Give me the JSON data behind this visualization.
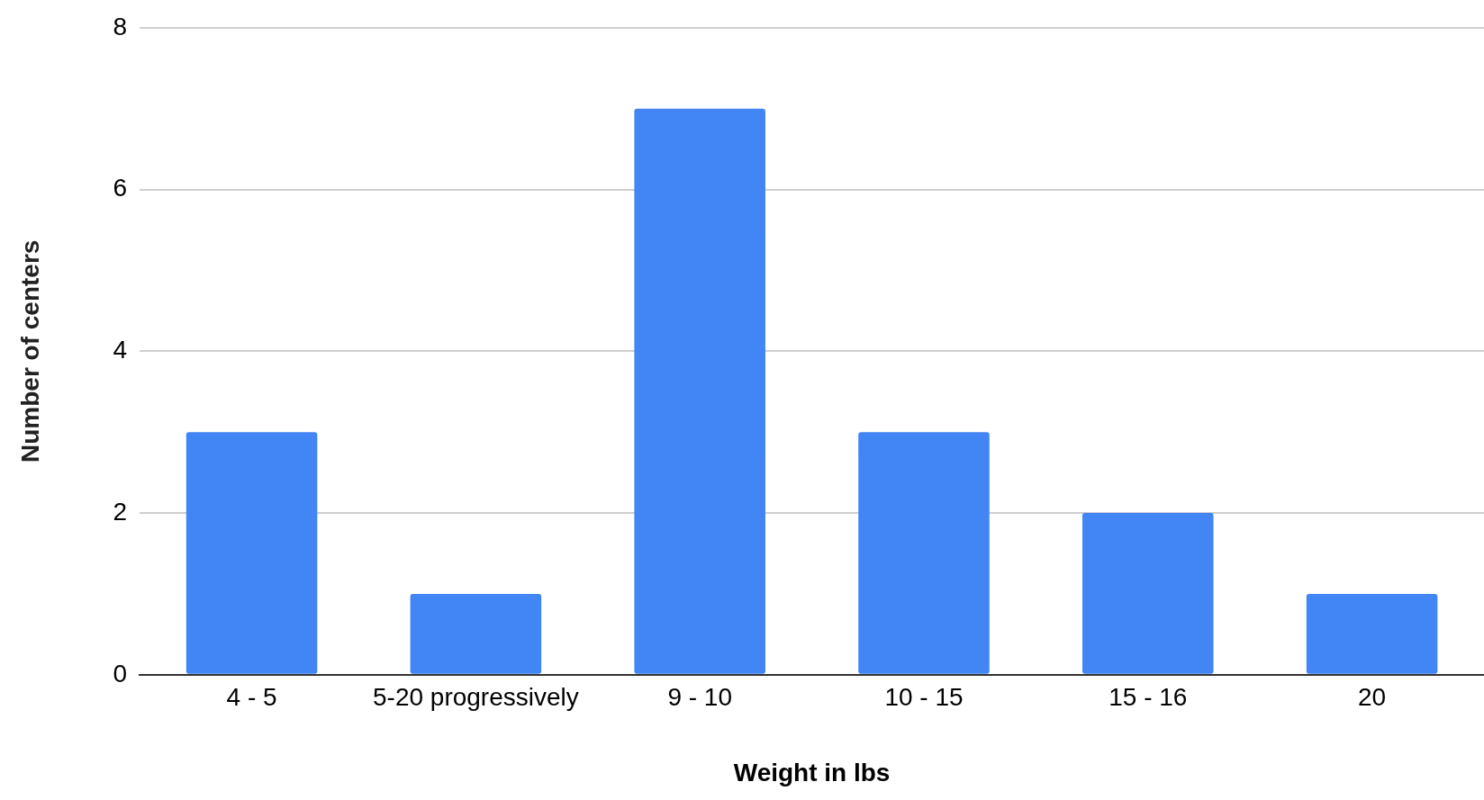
{
  "chart_data": {
    "type": "bar",
    "xlabel": "Weight in lbs",
    "ylabel": "Number of centers",
    "categories": [
      "4 - 5",
      "5-20 progressively",
      "9 - 10",
      "10 - 15",
      "15 - 16",
      "20"
    ],
    "values": [
      3,
      1,
      7,
      3,
      2,
      1
    ],
    "color": "#4285f4",
    "ylim": [
      0,
      8
    ],
    "yticks": [
      0,
      2,
      4,
      6,
      8
    ],
    "grid": "y",
    "legend": false
  }
}
